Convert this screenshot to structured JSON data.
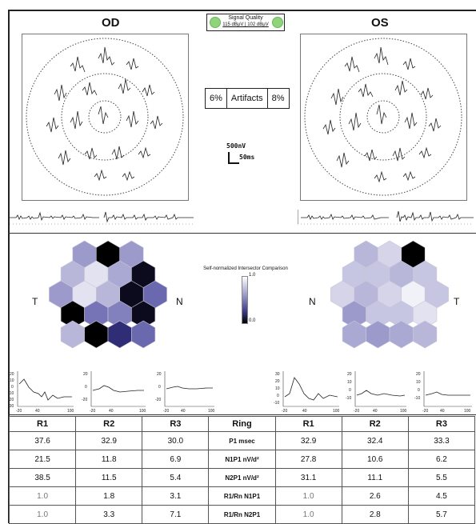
{
  "eyes": {
    "od": {
      "label": "OD",
      "nasal_label": "N",
      "temporal_label": "T",
      "rows": [
        "37.6",
        "21.5",
        "38.5",
        "1.0",
        "1.0"
      ]
    },
    "os": {
      "label": "OS",
      "nasal_label": "N",
      "temporal_label": "T"
    }
  },
  "signal_quality": {
    "title": "Signal Quality",
    "values": "115 dBµV  |  102 dBµV",
    "color": "#8fd37a"
  },
  "artifacts": {
    "od_percent": "6%",
    "label": "Artifacts",
    "os_percent": "8%"
  },
  "scale_bar": {
    "voltage": "500nV",
    "time": "50ms"
  },
  "legend": {
    "title": "Self-normalized Intersector Comparison",
    "max": "1.0",
    "min": "0.0"
  },
  "hexmap": {
    "od_values": [
      0.35,
      1.0,
      0.35,
      0.25,
      0.1,
      0.3,
      0.95,
      0.35,
      0.1,
      0.25,
      0.95,
      0.55,
      1.0,
      0.5,
      0.45,
      0.95,
      0.25,
      1.0,
      0.8,
      0.55
    ],
    "os_values": [
      0.25,
      0.15,
      1.0,
      0.2,
      0.2,
      0.25,
      0.2,
      0.15,
      0.25,
      0.15,
      0.05,
      0.2,
      0.35,
      0.2,
      0.2,
      0.1,
      0.3,
      0.35,
      0.3,
      0.25
    ]
  },
  "ring_plots": {
    "y_ticks": [
      "20",
      "10",
      "0",
      "-10",
      "-20",
      "-30"
    ],
    "x_ticks": [
      "-20",
      "0",
      "20",
      "40",
      "60",
      "80",
      "100"
    ],
    "os_y_ticks_r1": [
      "30",
      "20",
      "10",
      "0",
      "-10"
    ],
    "os_y_ticks": [
      "20",
      "10",
      "0",
      "-10"
    ]
  },
  "table": {
    "headers": [
      "R1",
      "R2",
      "R3",
      "Ring",
      "R1",
      "R2",
      "R3"
    ],
    "rows": [
      [
        "37.6",
        "32.9",
        "30.0",
        "P1 msec",
        "32.9",
        "32.4",
        "33.3"
      ],
      [
        "21.5",
        "11.8",
        "6.9",
        "N1P1 nV/d²",
        "27.8",
        "10.6",
        "6.2"
      ],
      [
        "38.5",
        "11.5",
        "5.4",
        "N2P1 nV/d²",
        "31.1",
        "11.1",
        "5.5"
      ],
      [
        "1.0",
        "1.8",
        "3.1",
        "R1/Rn N1P1",
        "1.0",
        "2.6",
        "4.5"
      ],
      [
        "1.0",
        "3.3",
        "7.1",
        "R1/Rn N2P1",
        "1.0",
        "2.8",
        "5.7"
      ]
    ]
  },
  "colors": {
    "hex_low": "#ffffff",
    "hex_mid": "#8e8cc4",
    "hex_deep": "#3a3894",
    "hex_max": "#000000"
  }
}
